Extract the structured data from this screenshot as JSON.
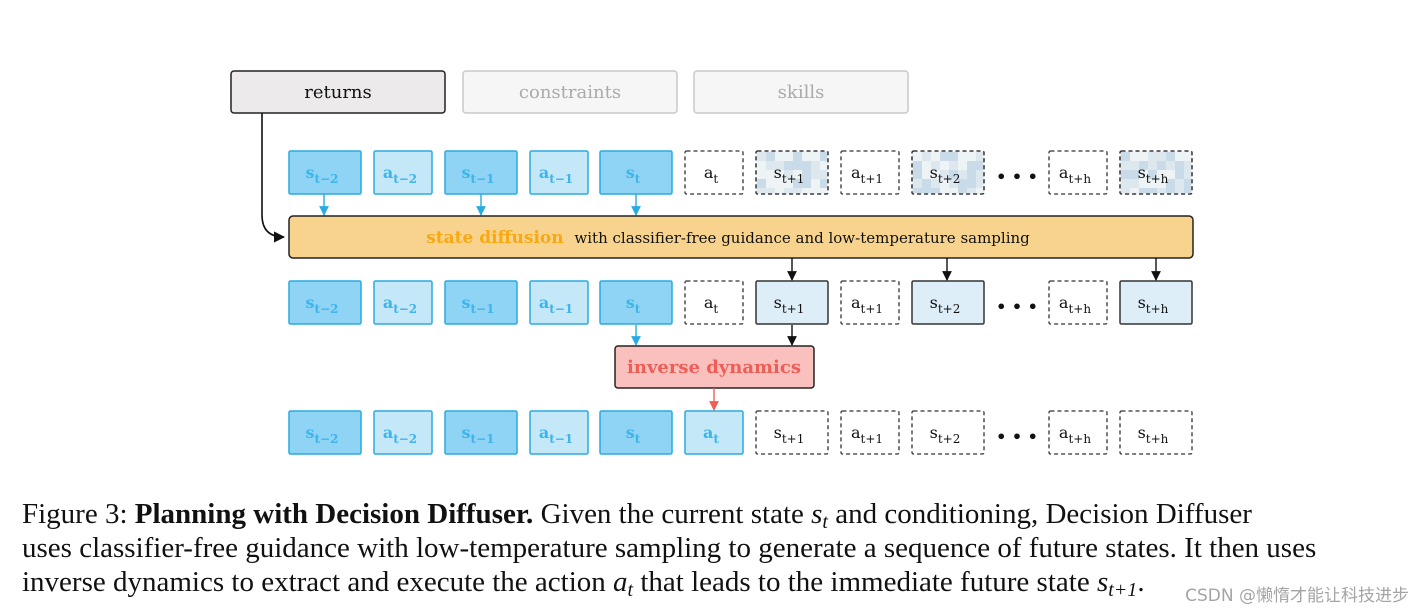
{
  "conditioning": {
    "returns": "returns",
    "constraints": "constraints",
    "skills": "skills"
  },
  "rows": {
    "row1": [
      {
        "base": "s",
        "sub": "t−2",
        "kind": "filled-dark"
      },
      {
        "base": "a",
        "sub": "t−2",
        "kind": "filled-light"
      },
      {
        "base": "s",
        "sub": "t−1",
        "kind": "filled-dark"
      },
      {
        "base": "a",
        "sub": "t−1",
        "kind": "filled-light"
      },
      {
        "base": "s",
        "sub": "t",
        "kind": "filled-dark"
      },
      {
        "base": "a",
        "sub": "t",
        "kind": "dashed"
      },
      {
        "base": "s",
        "sub": "t+1",
        "kind": "noisy"
      },
      {
        "base": "a",
        "sub": "t+1",
        "kind": "dashed"
      },
      {
        "base": "s",
        "sub": "t+2",
        "kind": "noisy"
      },
      {
        "base": "a",
        "sub": "t+h",
        "kind": "dashed"
      },
      {
        "base": "s",
        "sub": "t+h",
        "kind": "noisy"
      }
    ],
    "row2": [
      {
        "base": "s",
        "sub": "t−2",
        "kind": "filled-dark"
      },
      {
        "base": "a",
        "sub": "t−2",
        "kind": "filled-light"
      },
      {
        "base": "s",
        "sub": "t−1",
        "kind": "filled-dark"
      },
      {
        "base": "a",
        "sub": "t−1",
        "kind": "filled-light"
      },
      {
        "base": "s",
        "sub": "t",
        "kind": "filled-dark"
      },
      {
        "base": "a",
        "sub": "t",
        "kind": "dashed"
      },
      {
        "base": "s",
        "sub": "t+1",
        "kind": "generated"
      },
      {
        "base": "a",
        "sub": "t+1",
        "kind": "dashed"
      },
      {
        "base": "s",
        "sub": "t+2",
        "kind": "generated"
      },
      {
        "base": "a",
        "sub": "t+h",
        "kind": "dashed"
      },
      {
        "base": "s",
        "sub": "t+h",
        "kind": "generated"
      }
    ],
    "row3": [
      {
        "base": "s",
        "sub": "t−2",
        "kind": "filled-dark"
      },
      {
        "base": "a",
        "sub": "t−2",
        "kind": "filled-light"
      },
      {
        "base": "s",
        "sub": "t−1",
        "kind": "filled-dark"
      },
      {
        "base": "a",
        "sub": "t−1",
        "kind": "filled-light"
      },
      {
        "base": "s",
        "sub": "t",
        "kind": "filled-dark"
      },
      {
        "base": "a",
        "sub": "t",
        "kind": "filled-light"
      },
      {
        "base": "s",
        "sub": "t+1",
        "kind": "dashed"
      },
      {
        "base": "a",
        "sub": "t+1",
        "kind": "dashed"
      },
      {
        "base": "s",
        "sub": "t+2",
        "kind": "dashed"
      },
      {
        "base": "a",
        "sub": "t+h",
        "kind": "dashed"
      },
      {
        "base": "s",
        "sub": "t+h",
        "kind": "dashed"
      }
    ]
  },
  "ellipsis": "• • •",
  "diffusion": {
    "title": "state diffusion",
    "rest": "with classifier-free guidance and low-temperature sampling"
  },
  "inverse": {
    "title": "inverse dynamics"
  },
  "caption": {
    "prefix": "Figure 3: ",
    "bold": "Planning with Decision Diffuser.",
    "l1a": " Given the current state ",
    "l1_s": "s",
    "l1_sub": "t",
    "l1b": " and conditioning, Decision Diffuser",
    "l2": "uses classifier-free guidance with low-temperature sampling to generate a sequence of future states. It then uses",
    "l3a": "inverse dynamics to extract and execute the action ",
    "l3_a": "a",
    "l3_sub": "t",
    "l3b": " that leads to the immediate future state ",
    "l3_s": "s",
    "l3_sub2": "t+1",
    "l3c": "."
  },
  "watermark": "CSDN @懒惰才能让科技进步",
  "colors": {
    "dark_fill": "#8fd3f5",
    "dark_stroke": "#29abe2",
    "light_fill": "#c5e8f8",
    "generated_fill": "#ddeef9",
    "diffusion_fill": "#f8d38d",
    "diffusion_title": "#f7a812",
    "inverse_fill": "#f9c0bd",
    "inverse_title": "#ef5d57",
    "arrow_blue": "#29abe2",
    "arrow_red": "#ef5d57"
  }
}
